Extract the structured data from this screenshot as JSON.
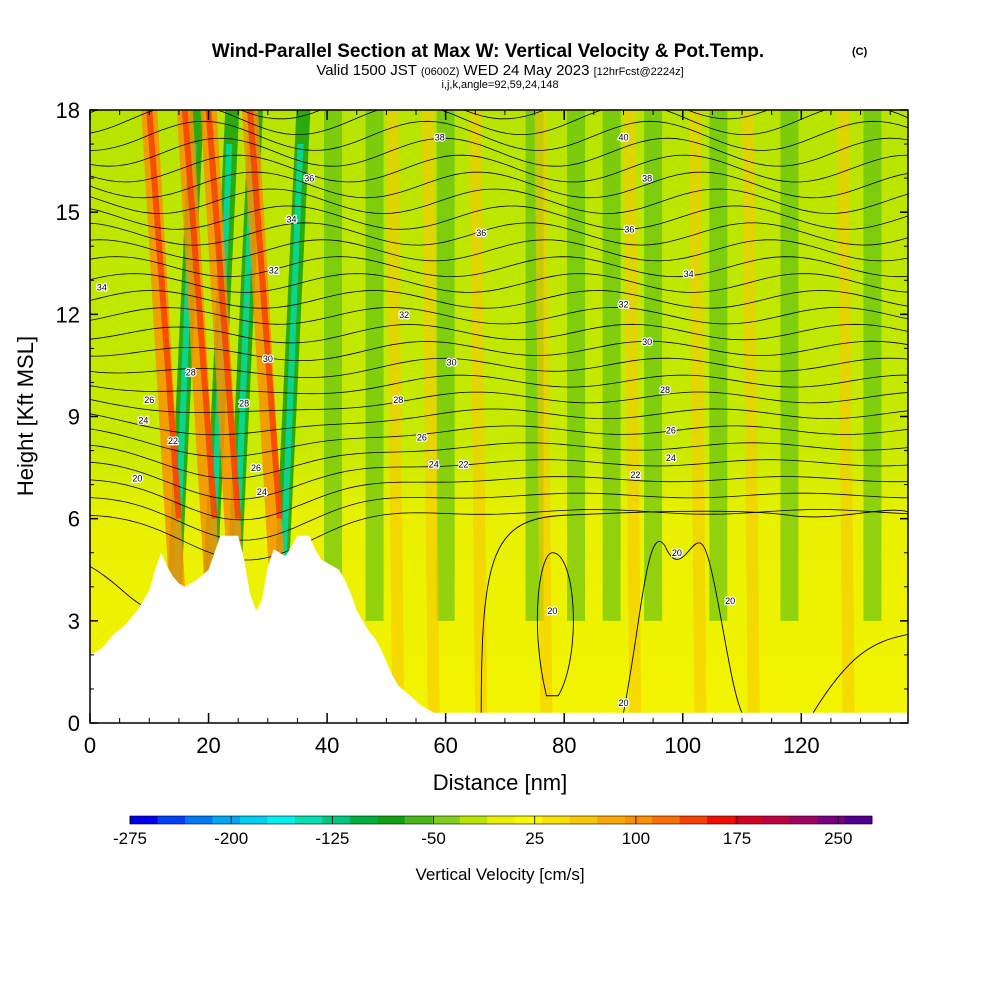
{
  "header": {
    "title": "Wind-Parallel Section at Max W: Vertical Velocity & Pot.Temp.",
    "copyright": "(C)",
    "valid_prefix": "Valid 1500 JST",
    "valid_utc": "(0600Z)",
    "valid_date": "WED 24 May 2023",
    "forecast": "[12hrFcst@2224z]",
    "grid_info": "i,j,k,angle=92,59,24,148"
  },
  "chart_data": {
    "type": "heatmap",
    "title": "Wind-Parallel Section at Max W: Vertical Velocity & Pot.Temp.",
    "xlabel": "Distance [nm]",
    "ylabel": "Height [Kft MSL]",
    "xlim": [
      0,
      138
    ],
    "ylim": [
      0,
      18
    ],
    "x_ticks": [
      "0",
      "20",
      "40",
      "60",
      "80",
      "100",
      "120"
    ],
    "y_ticks": [
      "0",
      "3",
      "6",
      "9",
      "12",
      "15",
      "18"
    ],
    "colorbar": {
      "label": "Vertical Velocity [cm/s]",
      "ticks": [
        "-275",
        "-200",
        "-125",
        "-50",
        "25",
        "100",
        "175",
        "250"
      ],
      "min": -275,
      "max": 275,
      "step": 25,
      "colors": [
        "#0000f0",
        "#0040f8",
        "#0078f8",
        "#00a8f0",
        "#00d0f0",
        "#00f0f0",
        "#00e0b0",
        "#00c880",
        "#00b040",
        "#10a010",
        "#48b818",
        "#80d020",
        "#b8e400",
        "#e8f000",
        "#f8f800",
        "#f8e000",
        "#f8c800",
        "#f8a800",
        "#f89000",
        "#f87000",
        "#f84000",
        "#f01000",
        "#d80020",
        "#c00040",
        "#a00060",
        "#780080",
        "#500090"
      ]
    },
    "terrain_top_kft": [
      [
        0,
        2.0
      ],
      [
        2,
        2.2
      ],
      [
        4,
        2.6
      ],
      [
        6,
        2.9
      ],
      [
        8,
        3.3
      ],
      [
        10,
        3.9
      ],
      [
        11,
        4.5
      ],
      [
        12,
        5.0
      ],
      [
        13,
        4.6
      ],
      [
        14,
        4.3
      ],
      [
        15,
        4.1
      ],
      [
        16,
        4.0
      ],
      [
        18,
        4.2
      ],
      [
        20,
        4.5
      ],
      [
        21,
        5.0
      ],
      [
        22,
        5.5
      ],
      [
        25,
        5.5
      ],
      [
        26,
        4.8
      ],
      [
        27,
        3.8
      ],
      [
        28,
        3.3
      ],
      [
        29,
        3.6
      ],
      [
        30,
        4.6
      ],
      [
        31,
        5.1
      ],
      [
        32,
        5.0
      ],
      [
        33,
        4.9
      ],
      [
        34,
        5.2
      ],
      [
        35,
        5.5
      ],
      [
        37,
        5.5
      ],
      [
        38,
        5.1
      ],
      [
        39,
        4.8
      ],
      [
        40,
        4.7
      ],
      [
        42,
        4.5
      ],
      [
        43,
        4.2
      ],
      [
        44,
        3.8
      ],
      [
        45,
        3.3
      ],
      [
        46,
        3.0
      ],
      [
        47,
        2.7
      ],
      [
        48,
        2.5
      ],
      [
        49,
        2.2
      ],
      [
        50,
        1.8
      ],
      [
        51,
        1.4
      ],
      [
        52,
        1.1
      ],
      [
        54,
        0.8
      ],
      [
        56,
        0.5
      ],
      [
        58,
        0.3
      ],
      [
        138,
        0.3
      ]
    ],
    "theta_contour_labels": [
      "20",
      "22",
      "24",
      "26",
      "28",
      "30",
      "32",
      "34",
      "36",
      "38",
      "40"
    ],
    "updraft_bands_nm": [
      16,
      22,
      26,
      33,
      52,
      58,
      66,
      77,
      92,
      103,
      112,
      128
    ],
    "downdraft_bands_nm": [
      14,
      20,
      24,
      32,
      41,
      48,
      60,
      75,
      82,
      88,
      95,
      106,
      118,
      132
    ]
  }
}
